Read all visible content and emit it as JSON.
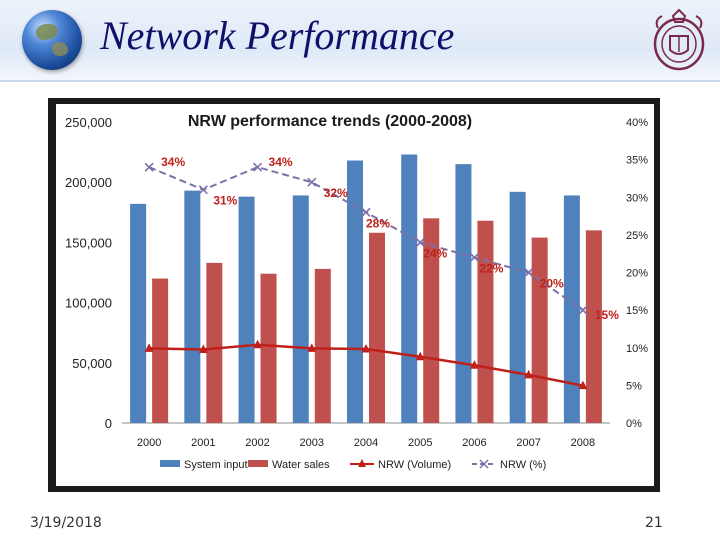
{
  "slide": {
    "title": "Network Performance",
    "date": "3/19/2018",
    "page_number": "21",
    "logo_icon": "globe-icon",
    "seal_icon": "crest-icon"
  },
  "chart_data": {
    "type": "bar",
    "title": "NRW performance trends (2000-2008)",
    "categories": [
      "2000",
      "2001",
      "2002",
      "2003",
      "2004",
      "2005",
      "2006",
      "2007",
      "2008"
    ],
    "series": [
      {
        "name": "System input",
        "kind": "bar",
        "axis": "left",
        "color": "#4f81bd",
        "values": [
          182000,
          193000,
          188000,
          189000,
          218000,
          223000,
          215000,
          192000,
          189000
        ]
      },
      {
        "name": "Water sales",
        "kind": "bar",
        "axis": "left",
        "color": "#c0504d",
        "values": [
          120000,
          133000,
          124000,
          128000,
          158000,
          170000,
          168000,
          154000,
          160000
        ]
      },
      {
        "name": "NRW (Volume)",
        "kind": "line",
        "axis": "left",
        "color": "#c0201a",
        "marker": "triangle",
        "values": [
          62000,
          61000,
          65000,
          62000,
          61500,
          55000,
          48000,
          40000,
          31000
        ]
      },
      {
        "name": "NRW (%)",
        "kind": "line",
        "axis": "right",
        "color": "#7c70a8",
        "marker": "x",
        "dashed": true,
        "values": [
          34,
          31,
          34,
          32,
          28,
          24,
          22,
          20,
          15
        ],
        "data_labels": [
          "34%",
          "31%",
          "34%",
          "32%",
          "28%",
          "24%",
          "22%",
          "20%",
          "15%"
        ]
      }
    ],
    "y_left": {
      "ticks": [
        "0",
        "50,000",
        "100,000",
        "150,000",
        "200,000",
        "250,000"
      ],
      "range": [
        0,
        250000
      ]
    },
    "y_right": {
      "ticks": [
        "0%",
        "5%",
        "10%",
        "15%",
        "20%",
        "25%",
        "30%",
        "35%",
        "40%"
      ],
      "range": [
        0,
        40
      ]
    },
    "legend_position": "bottom",
    "grid": false
  }
}
